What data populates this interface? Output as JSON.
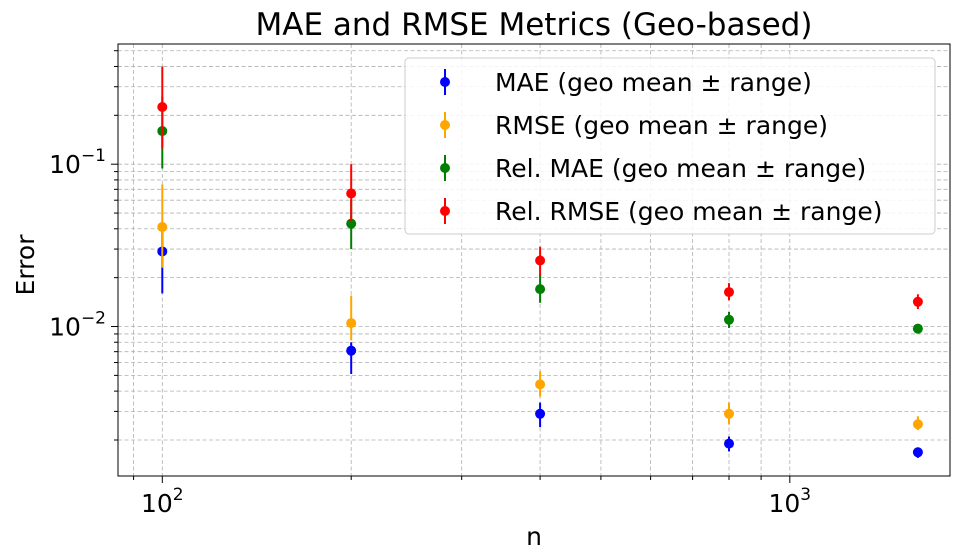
{
  "chart_data": {
    "type": "scatter",
    "title": "MAE and RMSE Metrics (Geo-based)",
    "xlabel": "n",
    "ylabel": "Error",
    "xscale": "log",
    "yscale": "log",
    "xlim": [
      85,
      1800
    ],
    "ylim": [
      0.0012,
      0.55
    ],
    "grid": true,
    "legend_position": "upper-right",
    "x": [
      100,
      200,
      400,
      800,
      1600
    ],
    "x_ticks": [
      {
        "value": 100,
        "base": "10",
        "exp": "2"
      },
      {
        "value": 1000,
        "base": "10",
        "exp": "3"
      }
    ],
    "y_ticks": [
      {
        "value": 0.01,
        "base": "10",
        "exp": "−2"
      },
      {
        "value": 0.1,
        "base": "10",
        "exp": "−1"
      }
    ],
    "series": [
      {
        "name": "MAE (geo mean ± range)",
        "color": "#0000ff",
        "values": [
          0.029,
          0.0071,
          0.0029,
          0.0019,
          0.00168
        ],
        "lower": [
          0.016,
          0.0051,
          0.0024,
          0.0017,
          0.00155
        ],
        "upper": [
          0.041,
          0.008,
          0.0034,
          0.0021,
          0.0018
        ]
      },
      {
        "name": "RMSE (geo mean ± range)",
        "color": "#ffa500",
        "values": [
          0.041,
          0.0105,
          0.0044,
          0.0029,
          0.0025
        ],
        "lower": [
          0.023,
          0.0082,
          0.0037,
          0.0025,
          0.0023
        ],
        "upper": [
          0.075,
          0.0155,
          0.0053,
          0.0034,
          0.0028
        ]
      },
      {
        "name": "Rel. MAE (geo mean ± range)",
        "color": "#008000",
        "values": [
          0.16,
          0.043,
          0.017,
          0.011,
          0.0097
        ],
        "lower": [
          0.094,
          0.03,
          0.014,
          0.0098,
          0.0092
        ],
        "upper": [
          0.26,
          0.06,
          0.021,
          0.0123,
          0.0102
        ]
      },
      {
        "name": "Rel. RMSE (geo mean ± range)",
        "color": "#ff0000",
        "values": [
          0.225,
          0.066,
          0.0255,
          0.0163,
          0.0142
        ],
        "lower": [
          0.125,
          0.044,
          0.0205,
          0.0145,
          0.0128
        ],
        "upper": [
          0.4,
          0.1,
          0.031,
          0.0185,
          0.0158
        ]
      }
    ]
  }
}
